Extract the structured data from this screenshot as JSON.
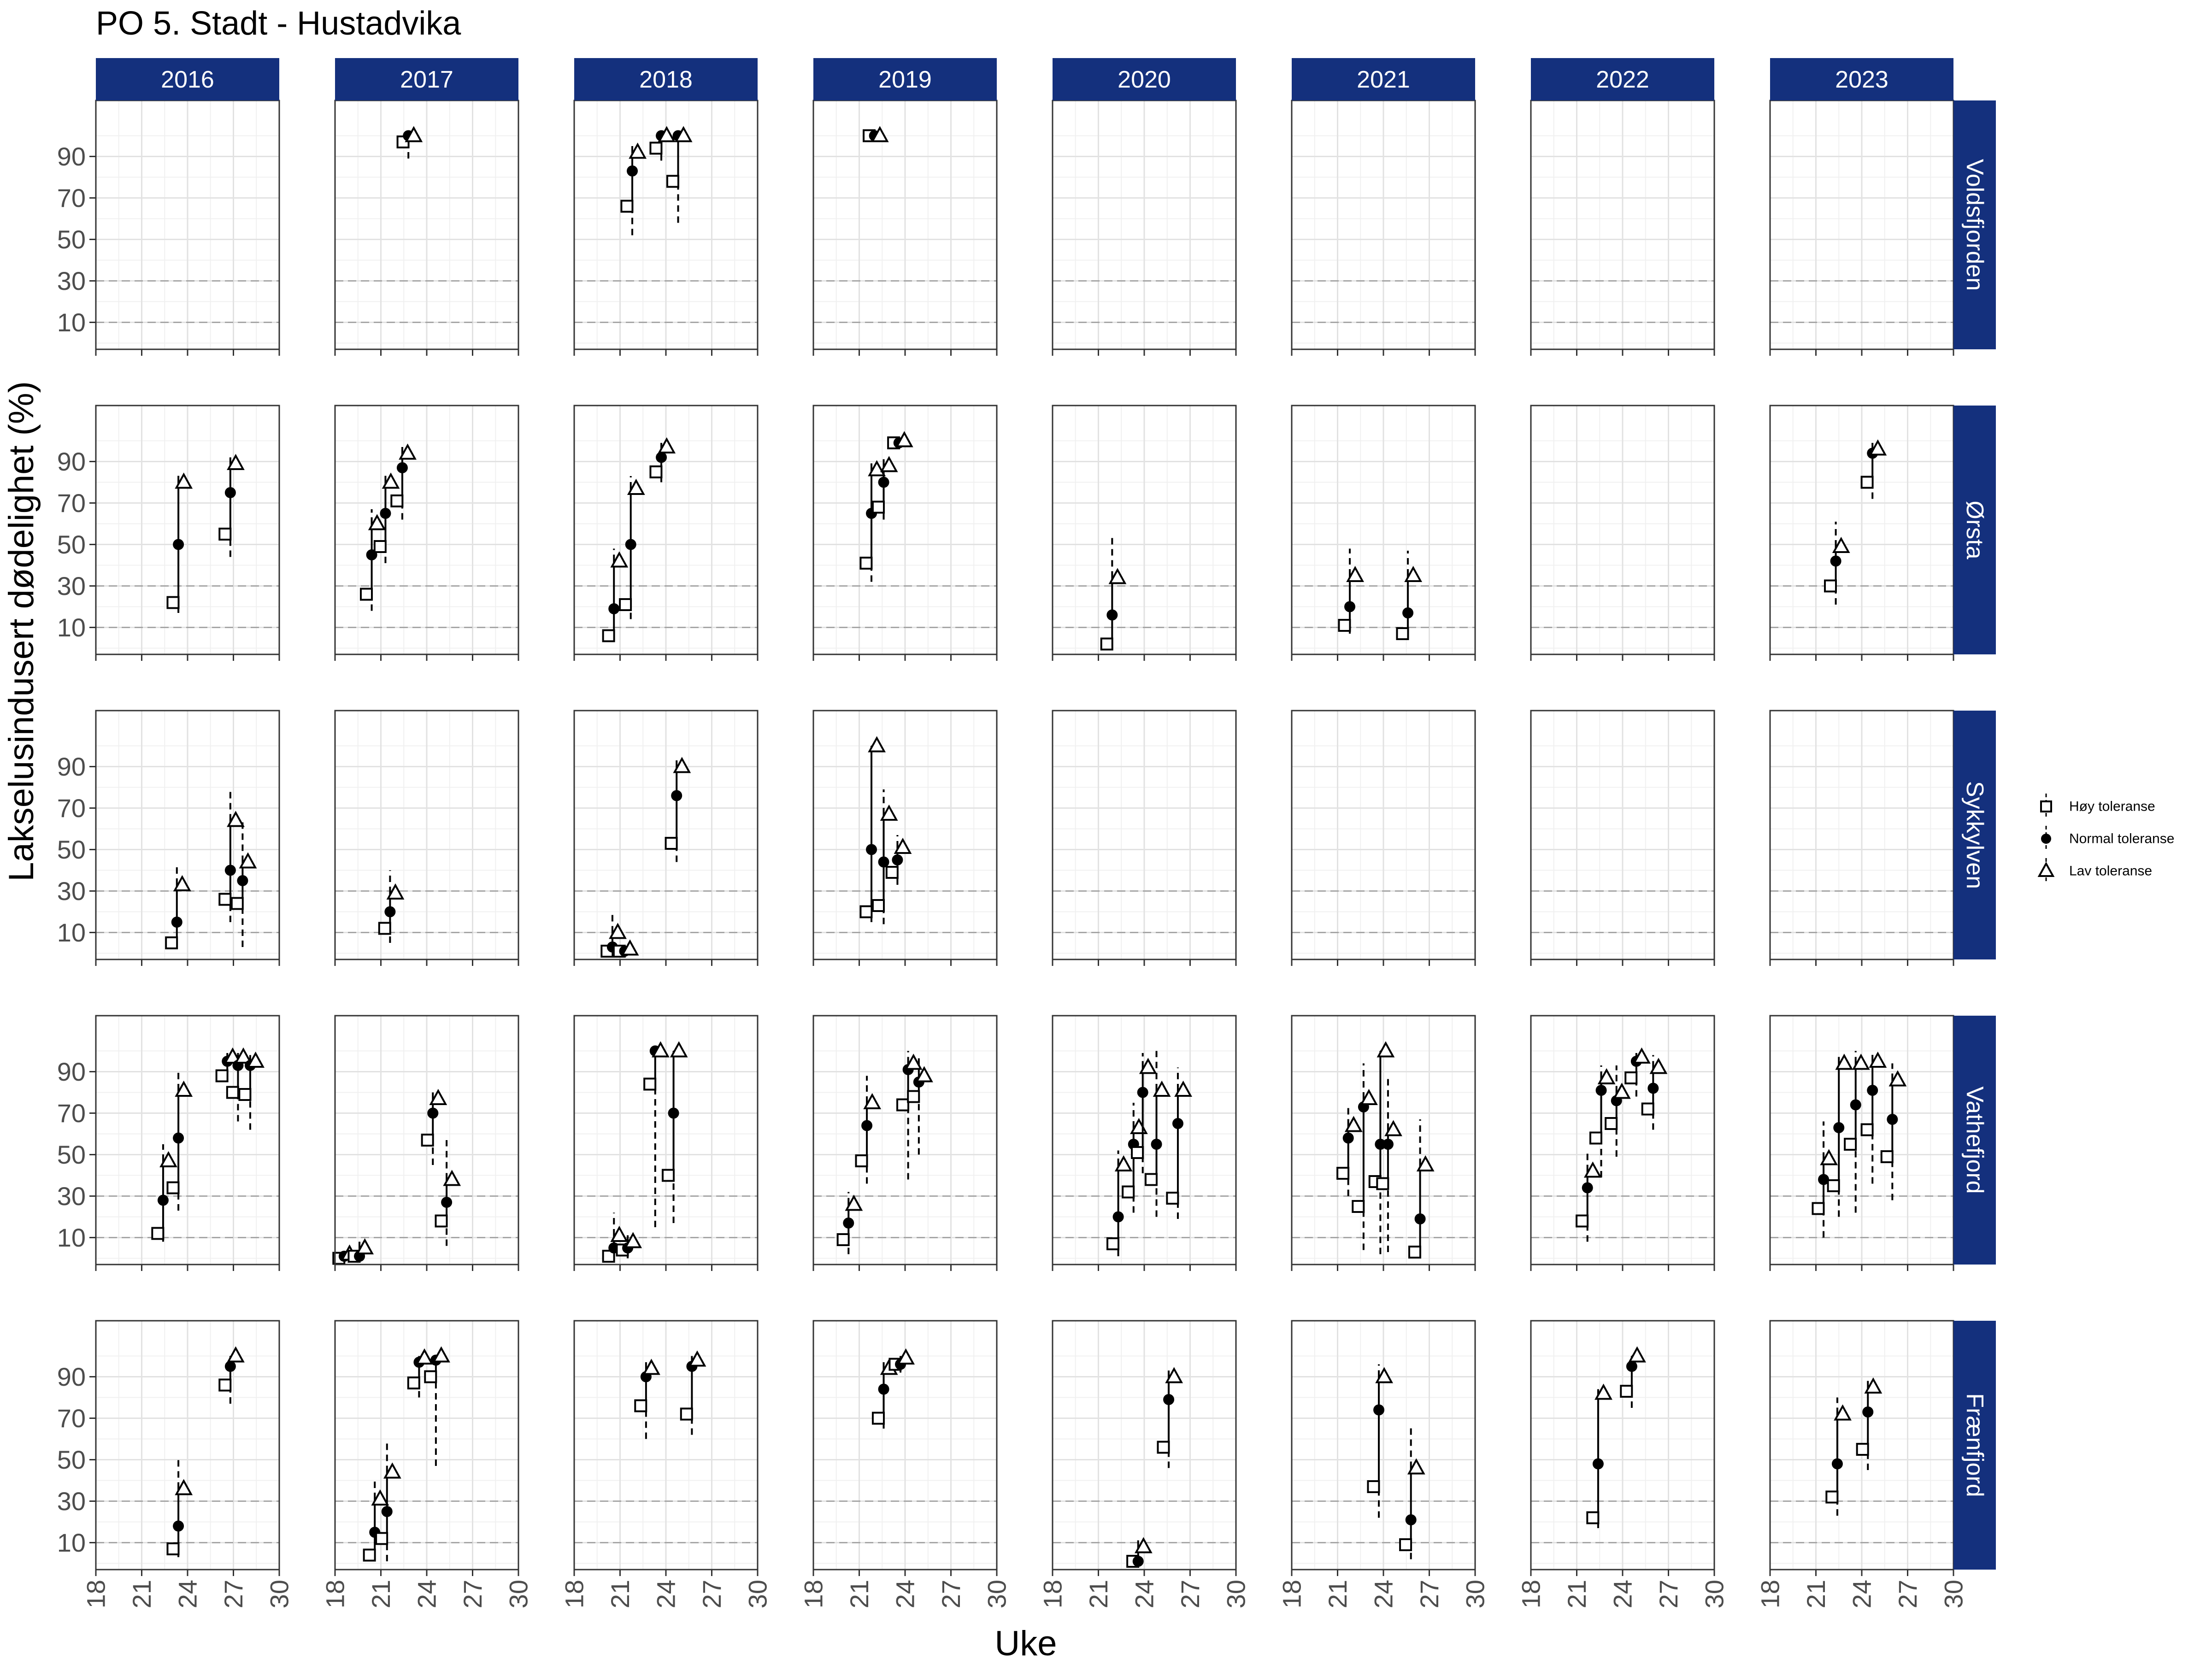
{
  "chart_data": {
    "type": "scatter",
    "title": "PO 5. Stadt - Hustadvika",
    "xlabel": "Uke",
    "ylabel": "Lakselusindusert dødelighet (%)",
    "xlim": [
      18,
      30
    ],
    "ylim": [
      -3,
      117
    ],
    "x_ticks": [
      18,
      21,
      24,
      27,
      30
    ],
    "y_ticks": [
      10,
      30,
      50,
      70,
      90
    ],
    "reference_lines": [
      10,
      30
    ],
    "years": [
      "2016",
      "2017",
      "2018",
      "2019",
      "2020",
      "2021",
      "2022",
      "2023"
    ],
    "regions": [
      "Voldsfjorden",
      "Ørsta",
      "Sykkylven",
      "Vathefjord",
      "Frænfjord"
    ],
    "grid": true,
    "legend_position": "right",
    "series_styles": [
      {
        "key": "hoy",
        "name": "Høy toleranse",
        "marker": "open-square",
        "color": "#000000"
      },
      {
        "key": "normal",
        "name": "Normal toleranse",
        "marker": "filled-circle",
        "color": "#000000"
      },
      {
        "key": "lav",
        "name": "Lav toleranse",
        "marker": "open-triangle",
        "color": "#000000"
      }
    ],
    "panels": [
      {
        "region": "Voldsfjorden",
        "year": "2017",
        "points": [
          {
            "x": 22.8,
            "hoy": 97,
            "normal": 100,
            "lav": 100,
            "lo": 89,
            "hi": 100
          }
        ]
      },
      {
        "region": "Voldsfjorden",
        "year": "2018",
        "points": [
          {
            "x": 21.8,
            "hoy": 66,
            "normal": 83,
            "lav": 92,
            "lo": 52,
            "hi": 95
          },
          {
            "x": 23.7,
            "hoy": 94,
            "normal": 100,
            "lav": 100,
            "lo": 88,
            "hi": 100
          },
          {
            "x": 24.8,
            "hoy": 78,
            "normal": 100,
            "lav": 100,
            "lo": 58,
            "hi": 100
          }
        ]
      },
      {
        "region": "Voldsfjorden",
        "year": "2019",
        "points": [
          {
            "x": 22.0,
            "hoy": 100,
            "normal": 100,
            "lav": 100,
            "lo": 98,
            "hi": 100
          }
        ]
      },
      {
        "region": "Ørsta",
        "year": "2016",
        "points": [
          {
            "x": 23.4,
            "hoy": 22,
            "normal": 50,
            "lav": 80,
            "lo": 17,
            "hi": 84
          },
          {
            "x": 26.8,
            "hoy": 55,
            "normal": 75,
            "lav": 89,
            "lo": 44,
            "hi": 92
          }
        ]
      },
      {
        "region": "Ørsta",
        "year": "2017",
        "points": [
          {
            "x": 20.4,
            "hoy": 26,
            "normal": 45,
            "lav": 60,
            "lo": 18,
            "hi": 67
          },
          {
            "x": 21.3,
            "hoy": 49,
            "normal": 65,
            "lav": 80,
            "lo": 41,
            "hi": 85
          },
          {
            "x": 22.4,
            "hoy": 71,
            "normal": 87,
            "lav": 94,
            "lo": 62,
            "hi": 97
          }
        ]
      },
      {
        "region": "Ørsta",
        "year": "2018",
        "points": [
          {
            "x": 20.6,
            "hoy": 6,
            "normal": 19,
            "lav": 42,
            "lo": 4,
            "hi": 48
          },
          {
            "x": 21.7,
            "hoy": 21,
            "normal": 50,
            "lav": 77,
            "lo": 14,
            "hi": 83
          },
          {
            "x": 23.7,
            "hoy": 85,
            "normal": 92,
            "lav": 97,
            "lo": 80,
            "hi": 99
          }
        ]
      },
      {
        "region": "Ørsta",
        "year": "2019",
        "points": [
          {
            "x": 21.8,
            "hoy": 41,
            "normal": 65,
            "lav": 86,
            "lo": 32,
            "hi": 90
          },
          {
            "x": 22.6,
            "hoy": 68,
            "normal": 80,
            "lav": 88,
            "lo": 62,
            "hi": 92
          },
          {
            "x": 23.6,
            "hoy": 99,
            "normal": 99,
            "lav": 100,
            "lo": 96,
            "hi": 100
          }
        ]
      },
      {
        "region": "Ørsta",
        "year": "2020",
        "points": [
          {
            "x": 21.9,
            "hoy": 2,
            "normal": 16,
            "lav": 34,
            "lo": 0,
            "hi": 54
          }
        ]
      },
      {
        "region": "Ørsta",
        "year": "2021",
        "points": [
          {
            "x": 21.8,
            "hoy": 11,
            "normal": 20,
            "lav": 35,
            "lo": 7,
            "hi": 48
          },
          {
            "x": 25.6,
            "hoy": 7,
            "normal": 17,
            "lav": 35,
            "lo": 4,
            "hi": 47
          }
        ]
      },
      {
        "region": "Ørsta",
        "year": "2023",
        "points": [
          {
            "x": 22.3,
            "hoy": 30,
            "normal": 42,
            "lav": 49,
            "lo": 21,
            "hi": 61
          },
          {
            "x": 24.7,
            "hoy": 80,
            "normal": 94,
            "lav": 96,
            "lo": 72,
            "hi": 99
          }
        ]
      },
      {
        "region": "Sykkylven",
        "year": "2016",
        "points": [
          {
            "x": 23.3,
            "hoy": 5,
            "normal": 15,
            "lav": 33,
            "lo": 3,
            "hi": 43
          },
          {
            "x": 26.8,
            "hoy": 26,
            "normal": 40,
            "lav": 64,
            "lo": 15,
            "hi": 78
          },
          {
            "x": 27.6,
            "hoy": 24,
            "normal": 35,
            "lav": 44,
            "lo": 3,
            "hi": 65
          }
        ]
      },
      {
        "region": "Sykkylven",
        "year": "2017",
        "points": [
          {
            "x": 21.6,
            "hoy": 12,
            "normal": 20,
            "lav": 29,
            "lo": 5,
            "hi": 40
          }
        ]
      },
      {
        "region": "Sykkylven",
        "year": "2018",
        "points": [
          {
            "x": 20.5,
            "hoy": 1,
            "normal": 3,
            "lav": 10,
            "lo": 0,
            "hi": 20
          },
          {
            "x": 21.3,
            "hoy": 1,
            "normal": 1,
            "lav": 2,
            "lo": 0,
            "hi": 4
          },
          {
            "x": 24.7,
            "hoy": 53,
            "normal": 76,
            "lav": 90,
            "lo": 44,
            "hi": 93
          }
        ]
      },
      {
        "region": "Sykkylven",
        "year": "2019",
        "points": [
          {
            "x": 21.8,
            "hoy": 20,
            "normal": 50,
            "lav": 100,
            "lo": 15,
            "hi": 100
          },
          {
            "x": 22.6,
            "hoy": 23,
            "normal": 44,
            "lav": 67,
            "lo": 14,
            "hi": 79
          },
          {
            "x": 23.5,
            "hoy": 39,
            "normal": 45,
            "lav": 51,
            "lo": 33,
            "hi": 57
          }
        ]
      },
      {
        "region": "Vathefjord",
        "year": "2016",
        "points": [
          {
            "x": 22.4,
            "hoy": 12,
            "normal": 28,
            "lav": 47,
            "lo": 8,
            "hi": 55
          },
          {
            "x": 23.4,
            "hoy": 34,
            "normal": 58,
            "lav": 81,
            "lo": 23,
            "hi": 90
          },
          {
            "x": 26.6,
            "hoy": 88,
            "normal": 95,
            "lav": 97,
            "lo": 80,
            "hi": 99
          },
          {
            "x": 27.3,
            "hoy": 80,
            "normal": 93,
            "lav": 97,
            "lo": 66,
            "hi": 99
          },
          {
            "x": 28.1,
            "hoy": 79,
            "normal": 93,
            "lav": 95,
            "lo": 62,
            "hi": 98
          }
        ]
      },
      {
        "region": "Vathefjord",
        "year": "2017",
        "points": [
          {
            "x": 18.6,
            "hoy": 0,
            "normal": 1,
            "lav": 2,
            "lo": 0,
            "hi": 3
          },
          {
            "x": 19.6,
            "hoy": 1,
            "normal": 1,
            "lav": 5,
            "lo": 0,
            "hi": 8
          },
          {
            "x": 24.4,
            "hoy": 57,
            "normal": 70,
            "lav": 77,
            "lo": 45,
            "hi": 80
          },
          {
            "x": 25.3,
            "hoy": 18,
            "normal": 27,
            "lav": 38,
            "lo": 6,
            "hi": 57
          }
        ]
      },
      {
        "region": "Vathefjord",
        "year": "2018",
        "points": [
          {
            "x": 20.6,
            "hoy": 1,
            "normal": 5,
            "lav": 11,
            "lo": 0,
            "hi": 22
          },
          {
            "x": 21.5,
            "hoy": 4,
            "normal": 5,
            "lav": 8,
            "lo": 0,
            "hi": 12
          },
          {
            "x": 23.3,
            "hoy": 84,
            "normal": 100,
            "lav": 100,
            "lo": 15,
            "hi": 100
          },
          {
            "x": 24.5,
            "hoy": 40,
            "normal": 70,
            "lav": 100,
            "lo": 17,
            "hi": 100
          }
        ]
      },
      {
        "region": "Vathefjord",
        "year": "2019",
        "points": [
          {
            "x": 20.3,
            "hoy": 9,
            "normal": 17,
            "lav": 26,
            "lo": 2,
            "hi": 32
          },
          {
            "x": 21.5,
            "hoy": 47,
            "normal": 64,
            "lav": 75,
            "lo": 36,
            "hi": 88
          },
          {
            "x": 24.2,
            "hoy": 74,
            "normal": 91,
            "lav": 94,
            "lo": 38,
            "hi": 100
          },
          {
            "x": 24.9,
            "hoy": 78,
            "normal": 85,
            "lav": 88,
            "lo": 50,
            "hi": 97
          }
        ]
      },
      {
        "region": "Vathefjord",
        "year": "2020",
        "points": [
          {
            "x": 22.3,
            "hoy": 7,
            "normal": 20,
            "lav": 45,
            "lo": 1,
            "hi": 52
          },
          {
            "x": 23.3,
            "hoy": 32,
            "normal": 55,
            "lav": 63,
            "lo": 22,
            "hi": 75
          },
          {
            "x": 23.9,
            "hoy": 51,
            "normal": 80,
            "lav": 92,
            "lo": 41,
            "hi": 99
          },
          {
            "x": 24.8,
            "hoy": 38,
            "normal": 55,
            "lav": 81,
            "lo": 20,
            "hi": 100
          },
          {
            "x": 26.2,
            "hoy": 29,
            "normal": 65,
            "lav": 81,
            "lo": 19,
            "hi": 92
          }
        ]
      },
      {
        "region": "Vathefjord",
        "year": "2021",
        "points": [
          {
            "x": 21.7,
            "hoy": 41,
            "normal": 58,
            "lav": 64,
            "lo": 30,
            "hi": 73
          },
          {
            "x": 22.7,
            "hoy": 25,
            "normal": 73,
            "lav": 77,
            "lo": 4,
            "hi": 94
          },
          {
            "x": 23.8,
            "hoy": 37,
            "normal": 55,
            "lav": 100,
            "lo": 2,
            "hi": 100
          },
          {
            "x": 24.3,
            "hoy": 36,
            "normal": 55,
            "lav": 62,
            "lo": 3,
            "hi": 88
          },
          {
            "x": 26.4,
            "hoy": 3,
            "normal": 19,
            "lav": 45,
            "lo": 1,
            "hi": 67
          }
        ]
      },
      {
        "region": "Vathefjord",
        "year": "2022",
        "points": [
          {
            "x": 21.7,
            "hoy": 18,
            "normal": 34,
            "lav": 42,
            "lo": 8,
            "hi": 52
          },
          {
            "x": 22.6,
            "hoy": 58,
            "normal": 81,
            "lav": 87,
            "lo": 39,
            "hi": 93
          },
          {
            "x": 23.6,
            "hoy": 65,
            "normal": 76,
            "lav": 80,
            "lo": 49,
            "hi": 93
          },
          {
            "x": 24.9,
            "hoy": 87,
            "normal": 95,
            "lav": 97,
            "lo": 78,
            "hi": 99
          },
          {
            "x": 26.0,
            "hoy": 72,
            "normal": 82,
            "lav": 92,
            "lo": 62,
            "hi": 98
          }
        ]
      },
      {
        "region": "Vathefjord",
        "year": "2023",
        "points": [
          {
            "x": 21.5,
            "hoy": 24,
            "normal": 38,
            "lav": 48,
            "lo": 10,
            "hi": 66
          },
          {
            "x": 22.5,
            "hoy": 35,
            "normal": 63,
            "lav": 94,
            "lo": 20,
            "hi": 99
          },
          {
            "x": 23.6,
            "hoy": 55,
            "normal": 74,
            "lav": 94,
            "lo": 22,
            "hi": 100
          },
          {
            "x": 24.7,
            "hoy": 62,
            "normal": 81,
            "lav": 95,
            "lo": 36,
            "hi": 100
          },
          {
            "x": 26.0,
            "hoy": 49,
            "normal": 67,
            "lav": 86,
            "lo": 28,
            "hi": 94
          }
        ]
      },
      {
        "region": "Frænfjord",
        "year": "2016",
        "points": [
          {
            "x": 23.4,
            "hoy": 7,
            "normal": 18,
            "lav": 36,
            "lo": 3,
            "hi": 52
          },
          {
            "x": 26.8,
            "hoy": 86,
            "normal": 95,
            "lav": 100,
            "lo": 77,
            "hi": 100
          }
        ]
      },
      {
        "region": "Frænfjord",
        "year": "2017",
        "points": [
          {
            "x": 20.6,
            "hoy": 4,
            "normal": 15,
            "lav": 31,
            "lo": 1,
            "hi": 41
          },
          {
            "x": 21.4,
            "hoy": 12,
            "normal": 25,
            "lav": 44,
            "lo": 1,
            "hi": 60
          },
          {
            "x": 23.5,
            "hoy": 87,
            "normal": 97,
            "lav": 99,
            "lo": 80,
            "hi": 100
          },
          {
            "x": 24.6,
            "hoy": 90,
            "normal": 98,
            "lav": 100,
            "lo": 47,
            "hi": 100
          }
        ]
      },
      {
        "region": "Frænfjord",
        "year": "2018",
        "points": [
          {
            "x": 22.7,
            "hoy": 76,
            "normal": 90,
            "lav": 94,
            "lo": 60,
            "hi": 97
          },
          {
            "x": 25.7,
            "hoy": 72,
            "normal": 95,
            "lav": 98,
            "lo": 62,
            "hi": 100
          }
        ]
      },
      {
        "region": "Frænfjord",
        "year": "2019",
        "points": [
          {
            "x": 22.6,
            "hoy": 70,
            "normal": 84,
            "lav": 94,
            "lo": 65,
            "hi": 97
          },
          {
            "x": 23.7,
            "hoy": 96,
            "normal": 96,
            "lav": 99,
            "lo": 92,
            "hi": 100
          }
        ]
      },
      {
        "region": "Frænfjord",
        "year": "2020",
        "points": [
          {
            "x": 23.6,
            "hoy": 1,
            "normal": 1,
            "lav": 8,
            "lo": 0,
            "hi": 12
          },
          {
            "x": 25.6,
            "hoy": 56,
            "normal": 79,
            "lav": 90,
            "lo": 46,
            "hi": 93
          }
        ]
      },
      {
        "region": "Frænfjord",
        "year": "2021",
        "points": [
          {
            "x": 23.7,
            "hoy": 37,
            "normal": 74,
            "lav": 90,
            "lo": 22,
            "hi": 96
          },
          {
            "x": 25.8,
            "hoy": 9,
            "normal": 21,
            "lav": 46,
            "lo": 2,
            "hi": 67
          }
        ]
      },
      {
        "region": "Frænfjord",
        "year": "2022",
        "points": [
          {
            "x": 22.4,
            "hoy": 22,
            "normal": 48,
            "lav": 82,
            "lo": 17,
            "hi": 84
          },
          {
            "x": 24.6,
            "hoy": 83,
            "normal": 95,
            "lav": 100,
            "lo": 75,
            "hi": 100
          }
        ]
      },
      {
        "region": "Frænfjord",
        "year": "2023",
        "points": [
          {
            "x": 22.4,
            "hoy": 32,
            "normal": 48,
            "lav": 72,
            "lo": 23,
            "hi": 80
          },
          {
            "x": 24.4,
            "hoy": 55,
            "normal": 73,
            "lav": 85,
            "lo": 45,
            "hi": 88
          }
        ]
      }
    ]
  }
}
